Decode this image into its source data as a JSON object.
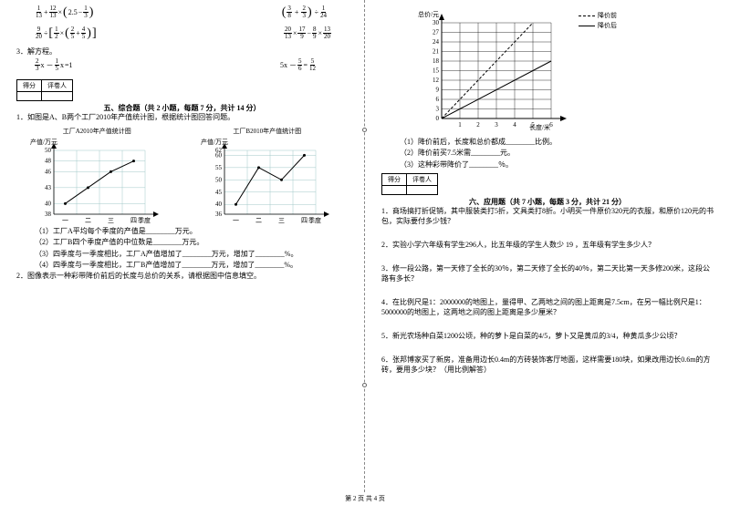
{
  "footer": "第 2 页 共 4 页",
  "left": {
    "expr1": {
      "a1n": "1",
      "a1d": "13",
      "a2n": "12",
      "a2d": "13",
      "b": "2.5",
      "cn": "1",
      "cd": "3"
    },
    "expr2": {
      "an": "3",
      "ad": "8",
      "bn": "2",
      "bd": "3",
      "cn": "1",
      "cd": "24"
    },
    "expr3": {
      "an": "9",
      "ad": "20",
      "bn": "1",
      "bd": "2",
      "cn": "2",
      "cd": "5",
      "dn": "4",
      "dd": "5"
    },
    "expr4": {
      "an": "20",
      "ad": "13",
      "bn": "17",
      "bd": "9",
      "cn": "8",
      "cd": "9",
      "dn": "13",
      "dd": "20"
    },
    "q3": "3．解方程。",
    "eq1": {
      "an": "2",
      "ad": "3",
      "bn": "1",
      "bd": "5",
      "rhs": "=1",
      "mid": " x － ",
      "tail": " x"
    },
    "eq2": {
      "lhs": "5x － ",
      "an": "5",
      "ad": "6",
      "mid": " = ",
      "bn": "5",
      "bd": "12"
    },
    "section5": "五、综合题（共 2 小题，每题 7 分，共计 14 分）",
    "score_h1": "得分",
    "score_h2": "评卷人",
    "s5q1": "1．如图是A、B两个工厂2010年产值统计图，根据统计图回答问题。",
    "chartA": {
      "title": "工厂A2010年产值统计图",
      "ylabel": "产值/万元",
      "xlabel": "季度",
      "yticks": [
        "38",
        "40",
        "43",
        "46",
        "48",
        "50"
      ],
      "xticks": [
        "一",
        "二",
        "三",
        "四"
      ],
      "points": [
        [
          0,
          40
        ],
        [
          1,
          43
        ],
        [
          2,
          46
        ],
        [
          3,
          48
        ]
      ],
      "grid_color": "#a0c8c8",
      "line_color": "#000",
      "bg": "#fff"
    },
    "chartB": {
      "title": "工厂B2010年产值统计图",
      "ylabel": "产值/万元",
      "xlabel": "季度",
      "yticks": [
        "36",
        "40",
        "45",
        "50",
        "55",
        "60",
        "62"
      ],
      "xticks": [
        "一",
        "二",
        "三",
        "四"
      ],
      "points": [
        [
          0,
          40
        ],
        [
          1,
          55
        ],
        [
          2,
          50
        ],
        [
          3,
          60
        ]
      ],
      "grid_color": "#a0c8c8",
      "line_color": "#000",
      "bg": "#fff"
    },
    "s5a": "（1）工厂A平均每个季度的产值是________万元。",
    "s5b": "（2）工厂B四个季度产值的中位数是________万元。",
    "s5c": "（3）四季度与一季度相比，工厂A产值增加了________万元，增加了________%。",
    "s5d": "（4）四季度与一季度相比，工厂B产值增加了________万元，增加了________%。",
    "s5q2": "2．图像表示一种彩带降价前后的长度与总价的关系，请根据图中信息填空。"
  },
  "right": {
    "legend1": "降价前",
    "legend2": "降价后",
    "chart": {
      "ylabel": "总价/元",
      "xlabel": "长度/米",
      "yticks": [
        "0",
        "3",
        "6",
        "9",
        "12",
        "15",
        "18",
        "21",
        "24",
        "27",
        "30"
      ],
      "xticks": [
        "1",
        "2",
        "3",
        "4",
        "5",
        "6"
      ],
      "line_before": [
        [
          0,
          0
        ],
        [
          5,
          30
        ]
      ],
      "line_after": [
        [
          0,
          0
        ],
        [
          6,
          18
        ]
      ],
      "grid_color": "#000",
      "bg": "#fff"
    },
    "r1": "（1）降价前后，长度和总价都成________比例。",
    "r2": "（2）降价前买7.5米需________元。",
    "r3": "（3）这种彩带降价了________％。",
    "section6": "六、应用题（共 7 小题，每题 3 分，共计 21 分）",
    "score_h1": "得分",
    "score_h2": "评卷人",
    "q1": "1．商场搞打折促销，其中服装类打5折，文具类打8折。小明买一件原价320元的衣服，和原价120元的书包，实际要付多少钱？",
    "q2": "2．实验小学六年级有学生296人，比五年级的学生人数少 19 ，五年级有学生多少人？",
    "q3": "3．修一段公路，第一天修了全长的30％，第二天修了全长的40％，第二天比第一天多修200米，这段公路有多长？",
    "q4": "4．在比例尺是1：2000000的地图上，量得甲、乙两地之间的图上距离是7.5cm，在另一幅比例尺是1：5000000的地图上，这两地之间的图上距离是多少厘米？",
    "q5": "5．新光农场种白菜1200公顷，种的萝卜是白菜的4/5，萝卜又是黄瓜的3/4，种黄瓜多少公顷？",
    "q6": "6．张邦博家买了新房，准备用边长0.4m的方砖装饰客厅地面，这样需要180块，如果改用边长0.6m的方砖，要用多少块？（用比例解答）"
  }
}
